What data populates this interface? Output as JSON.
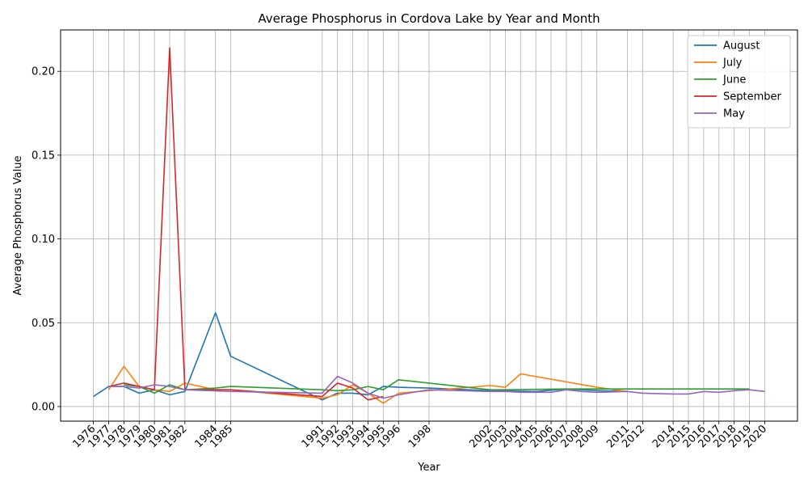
{
  "chart_data": {
    "type": "line",
    "title": "Average Phosphorus in Cordova Lake by Year and Month",
    "xlabel": "Year",
    "ylabel": "Average Phosphorus Value",
    "xlim": [
      1973.85,
      2022.15
    ],
    "ylim": [
      -0.0087,
      0.2247
    ],
    "grid": true,
    "legend_position": "top-right",
    "yticks": [
      0.0,
      0.05,
      0.1,
      0.15,
      0.2
    ],
    "ytick_labels": [
      "0.00",
      "0.05",
      "0.10",
      "0.15",
      "0.20"
    ],
    "xticks": [
      1976,
      1977,
      1978,
      1979,
      1980,
      1981,
      1982,
      1984,
      1985,
      1991,
      1992,
      1993,
      1994,
      1995,
      1996,
      1998,
      2002,
      2003,
      2004,
      2005,
      2006,
      2007,
      2008,
      2009,
      2011,
      2012,
      2014,
      2015,
      2016,
      2017,
      2018,
      2019,
      2020
    ],
    "xtick_labels": [
      "1976",
      "1977",
      "1978",
      "1979",
      "1980",
      "1981",
      "1982",
      "1984",
      "1985",
      "1991",
      "1992",
      "1993",
      "1994",
      "1995",
      "1996",
      "1998",
      "2002",
      "2003",
      "2004",
      "2005",
      "2006",
      "2007",
      "2008",
      "2009",
      "2011",
      "2012",
      "2014",
      "2015",
      "2016",
      "2017",
      "2018",
      "2019",
      "2020"
    ],
    "series": [
      {
        "name": "August",
        "color": "#1f77b4",
        "x": [
          1976,
          1977,
          1978,
          1979,
          1980,
          1981,
          1982,
          1984,
          1985,
          1991,
          1992,
          1993,
          1994,
          1995,
          1996,
          1998,
          2002,
          2005,
          2007,
          2009,
          2011
        ],
        "y": [
          0.006,
          0.012,
          0.012,
          0.008,
          0.01,
          0.007,
          0.009,
          0.056,
          0.03,
          0.004,
          0.008,
          0.008,
          0.007,
          0.012,
          0.0115,
          0.011,
          0.0095,
          0.009,
          0.0105,
          0.0095,
          0.009
        ]
      },
      {
        "name": "July",
        "color": "#ff7f0e",
        "x": [
          1977,
          1978,
          1979,
          1980,
          1981,
          1982,
          1984,
          1985,
          1991,
          1992,
          1993,
          1994,
          1995,
          1996,
          2002,
          2003,
          2004,
          2009,
          2011
        ],
        "y": [
          0.01,
          0.024,
          0.012,
          0.01,
          0.009,
          0.014,
          0.01,
          0.01,
          0.005,
          0.007,
          0.013,
          0.008,
          0.002,
          0.008,
          0.0125,
          0.0115,
          0.0195,
          0.0115,
          0.009
        ]
      },
      {
        "name": "June",
        "color": "#2ca02c",
        "x": [
          1978,
          1979,
          1980,
          1981,
          1982,
          1984,
          1985,
          1991,
          1992,
          1993,
          1994,
          1995,
          1996,
          2002,
          2003,
          2007,
          2009,
          2019
        ],
        "y": [
          0.013,
          0.012,
          0.008,
          0.013,
          0.01,
          0.011,
          0.012,
          0.01,
          0.0095,
          0.01,
          0.012,
          0.01,
          0.016,
          0.01,
          0.01,
          0.0105,
          0.0105,
          0.0105
        ]
      },
      {
        "name": "September",
        "color": "#d62728",
        "x": [
          1977,
          1978,
          1979,
          1980,
          1981,
          1982,
          1985,
          1991,
          1992,
          1993,
          1994,
          1995
        ],
        "y": [
          0.012,
          0.014,
          0.012,
          0.01,
          0.214,
          0.01,
          0.01,
          0.006,
          0.014,
          0.011,
          0.004,
          0.006
        ]
      },
      {
        "name": "May",
        "color": "#9467bd",
        "x": [
          1977,
          1978,
          1979,
          1980,
          1981,
          1982,
          1985,
          1991,
          1992,
          1993,
          1994,
          1995,
          1996,
          1998,
          2002,
          2003,
          2004,
          2005,
          2006,
          2007,
          2008,
          2009,
          2011,
          2012,
          2014,
          2015,
          2016,
          2017,
          2018,
          2019,
          2020
        ],
        "y": [
          0.012,
          0.012,
          0.011,
          0.013,
          0.012,
          0.01,
          0.009,
          0.008,
          0.018,
          0.014,
          0.008,
          0.005,
          0.007,
          0.01,
          0.009,
          0.009,
          0.0085,
          0.0085,
          0.0085,
          0.01,
          0.009,
          0.0085,
          0.009,
          0.008,
          0.0075,
          0.0075,
          0.009,
          0.0085,
          0.0095,
          0.01,
          0.009
        ]
      }
    ]
  }
}
